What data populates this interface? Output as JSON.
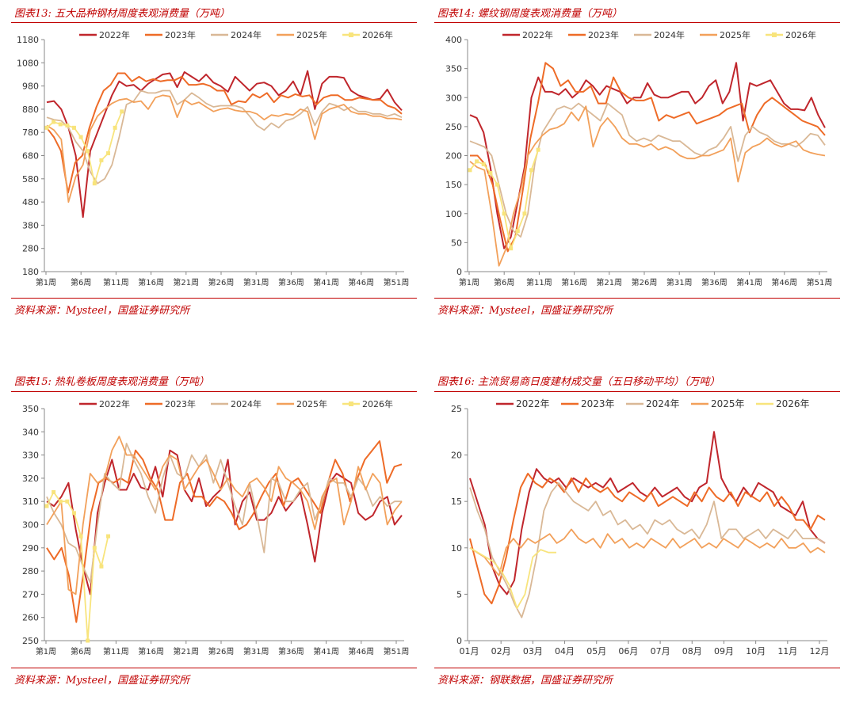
{
  "colors": {
    "title": "#c00000",
    "2022": "#c0262c",
    "2023": "#ee6b27",
    "2024": "#d9b896",
    "2025": "#f2a05a",
    "2026": "#f8e47c"
  },
  "panels": [
    {
      "title": "图表13: 五大品种钢材周度表观消费量（万吨）",
      "source": "资料来源：Mysteel，国盛证券研究所"
    },
    {
      "title": "图表14: 螺纹钢周度表观消费量（万吨）",
      "source": "资料来源：Mysteel，国盛证券研究所"
    },
    {
      "title": "图表15: 热轧卷板周度表观消费量（万吨）",
      "source": "资料来源：Mysteel，国盛证券研究所"
    },
    {
      "title": "图表16: 主流贸易商日度建材成交量（五日移动平均）（万吨）",
      "source": "资料来源：钢联数据，国盛证券研究所"
    }
  ],
  "chart_data": [
    {
      "type": "line",
      "title": "图表13: 五大品种钢材周度表观消费量（万吨）",
      "x_ticks": [
        "第1周",
        "第6周",
        "第11周",
        "第16周",
        "第21周",
        "第26周",
        "第31周",
        "第36周",
        "第41周",
        "第46周",
        "第51周"
      ],
      "ylim": [
        180,
        1180
      ],
      "y_ticks": [
        180,
        280,
        380,
        480,
        580,
        680,
        780,
        880,
        980,
        1080,
        1180
      ],
      "legend": "top",
      "series": [
        {
          "name": "2022年",
          "values": [
            910,
            915,
            880,
            800,
            680,
            415,
            700,
            780,
            860,
            940,
            1000,
            980,
            985,
            960,
            990,
            1010,
            1030,
            1035,
            975,
            1040,
            1020,
            1000,
            1030,
            995,
            980,
            955,
            1020,
            990,
            960,
            990,
            995,
            980,
            940,
            960,
            1000,
            940,
            1045,
            880,
            990,
            1020,
            1020,
            1015,
            960,
            940,
            930,
            920,
            925,
            965,
            910,
            875
          ]
        },
        {
          "name": "2023年",
          "values": [
            800,
            760,
            700,
            520,
            650,
            680,
            800,
            890,
            960,
            985,
            1035,
            1035,
            1000,
            1020,
            1000,
            1010,
            1000,
            1005,
            1005,
            1020,
            985,
            985,
            990,
            980,
            960,
            960,
            900,
            915,
            910,
            945,
            930,
            950,
            910,
            940,
            930,
            945,
            935,
            940,
            900,
            930,
            940,
            940,
            920,
            920,
            930,
            925,
            920,
            920,
            895,
            885,
            860
          ]
        },
        {
          "name": "2024年",
          "values": [
            845,
            835,
            830,
            800,
            740,
            700,
            610,
            560,
            580,
            640,
            760,
            900,
            915,
            960,
            950,
            950,
            960,
            960,
            900,
            920,
            950,
            930,
            905,
            890,
            895,
            895,
            895,
            885,
            850,
            810,
            790,
            820,
            800,
            830,
            840,
            860,
            890,
            810,
            870,
            905,
            895,
            875,
            890,
            870,
            870,
            860,
            860,
            850,
            860,
            845
          ]
        },
        {
          "name": "2025年",
          "values": [
            810,
            790,
            750,
            480,
            590,
            640,
            790,
            850,
            880,
            905,
            920,
            925,
            910,
            915,
            880,
            930,
            940,
            935,
            845,
            920,
            900,
            910,
            890,
            870,
            880,
            885,
            875,
            870,
            870,
            860,
            835,
            855,
            850,
            860,
            855,
            880,
            870,
            750,
            860,
            880,
            890,
            900,
            870,
            860,
            860,
            850,
            850,
            840,
            840,
            835
          ]
        },
        {
          "name": "2026年",
          "values": [
            800,
            825,
            815,
            810,
            800,
            760,
            700,
            560,
            660,
            690,
            800,
            870
          ]
        }
      ]
    },
    {
      "type": "line",
      "title": "图表14: 螺纹钢周度表观消费量（万吨）",
      "x_ticks": [
        "第1周",
        "第6周",
        "第11周",
        "第16周",
        "第21周",
        "第26周",
        "第31周",
        "第36周",
        "第41周",
        "第46周",
        "第51周"
      ],
      "ylim": [
        0,
        400
      ],
      "y_ticks": [
        0,
        50,
        100,
        150,
        200,
        250,
        300,
        350,
        400
      ],
      "legend": "top",
      "series": [
        {
          "name": "2022年",
          "values": [
            270,
            265,
            240,
            180,
            100,
            40,
            60,
            120,
            180,
            300,
            335,
            310,
            310,
            305,
            315,
            300,
            310,
            330,
            320,
            305,
            320,
            315,
            310,
            290,
            300,
            300,
            325,
            305,
            300,
            300,
            305,
            310,
            310,
            290,
            300,
            320,
            330,
            290,
            310,
            360,
            260,
            325,
            320,
            325,
            330,
            310,
            290,
            280,
            280,
            278,
            300,
            270,
            248
          ]
        },
        {
          "name": "2023年",
          "values": [
            200,
            200,
            185,
            150,
            90,
            35,
            60,
            140,
            230,
            290,
            360,
            350,
            320,
            330,
            310,
            310,
            320,
            290,
            290,
            335,
            310,
            300,
            295,
            295,
            300,
            260,
            270,
            265,
            270,
            275,
            255,
            260,
            265,
            270,
            280,
            285,
            290,
            240,
            270,
            290,
            300,
            290,
            280,
            270,
            260,
            255,
            250,
            235
          ]
        },
        {
          "name": "2024年",
          "values": [
            225,
            220,
            215,
            200,
            150,
            100,
            70,
            60,
            100,
            190,
            240,
            260,
            280,
            285,
            280,
            290,
            280,
            270,
            260,
            290,
            280,
            270,
            235,
            225,
            230,
            225,
            235,
            230,
            225,
            225,
            215,
            205,
            200,
            210,
            215,
            230,
            250,
            190,
            235,
            250,
            240,
            235,
            225,
            220,
            220,
            215,
            225,
            238,
            235,
            218
          ]
        },
        {
          "name": "2025年",
          "values": [
            190,
            180,
            175,
            100,
            10,
            40,
            100,
            140,
            200,
            220,
            235,
            245,
            248,
            255,
            275,
            260,
            285,
            215,
            250,
            265,
            250,
            230,
            220,
            220,
            215,
            220,
            210,
            215,
            210,
            200,
            195,
            195,
            200,
            200,
            205,
            210,
            230,
            155,
            205,
            215,
            220,
            230,
            220,
            215,
            220,
            225,
            210,
            205,
            202,
            200
          ]
        },
        {
          "name": "2026年",
          "values": [
            175,
            190,
            185,
            170,
            150,
            100,
            40,
            70,
            100,
            175,
            210
          ]
        }
      ]
    },
    {
      "type": "line",
      "title": "图表15: 热轧卷板周度表观消费量（万吨）",
      "x_ticks": [
        "第1周",
        "第6周",
        "第11周",
        "第16周",
        "第21周",
        "第26周",
        "第31周",
        "第36周",
        "第41周",
        "第46周",
        "第51周"
      ],
      "ylim": [
        250,
        350
      ],
      "y_ticks": [
        250,
        260,
        270,
        280,
        290,
        300,
        310,
        320,
        330,
        340,
        350
      ],
      "legend": "top",
      "series": [
        {
          "name": "2022年",
          "values": [
            310,
            308,
            312,
            318,
            298,
            282,
            270,
            305,
            318,
            328,
            315,
            315,
            322,
            316,
            315,
            325,
            312,
            332,
            330,
            315,
            310,
            320,
            308,
            312,
            315,
            328,
            300,
            310,
            314,
            302,
            302,
            305,
            312,
            306,
            310,
            314,
            300,
            284,
            305,
            318,
            322,
            320,
            318,
            305,
            302,
            304,
            310,
            312,
            300,
            304
          ]
        },
        {
          "name": "2023年",
          "values": [
            290,
            285,
            290,
            278,
            258,
            280,
            305,
            318,
            320,
            318,
            320,
            318,
            332,
            328,
            320,
            315,
            302,
            302,
            318,
            322,
            312,
            312,
            308,
            312,
            310,
            305,
            298,
            300,
            305,
            312,
            318,
            322,
            308,
            318,
            320,
            315,
            310,
            305,
            318,
            328,
            322,
            310,
            320,
            328,
            332,
            336,
            318,
            325,
            326
          ]
        },
        {
          "name": "2024年",
          "values": [
            312,
            305,
            300,
            292,
            290,
            282,
            275,
            300,
            322,
            318,
            315,
            335,
            328,
            322,
            312,
            305,
            320,
            330,
            322,
            320,
            330,
            325,
            330,
            318,
            328,
            318,
            308,
            300,
            318,
            304,
            288,
            320,
            318,
            310,
            310,
            315,
            318,
            302,
            310,
            320,
            318,
            318,
            312,
            320,
            316,
            308,
            312,
            308,
            310,
            310
          ]
        },
        {
          "name": "2025年",
          "values": [
            300,
            305,
            310,
            272,
            270,
            300,
            322,
            318,
            320,
            332,
            338,
            330,
            330,
            325,
            320,
            315,
            325,
            330,
            328,
            315,
            320,
            325,
            328,
            322,
            315,
            320,
            315,
            312,
            318,
            320,
            316,
            310,
            325,
            320,
            318,
            315,
            310,
            298,
            312,
            318,
            320,
            300,
            310,
            325,
            315,
            322,
            318,
            300,
            306,
            310
          ]
        },
        {
          "name": "2026年",
          "values": [
            308,
            314,
            310,
            310,
            305,
            295,
            250,
            290,
            282,
            295
          ]
        }
      ]
    },
    {
      "type": "line",
      "title": "图表16: 主流贸易商日度建材成交量（五日移动平均）（万吨）",
      "x_ticks": [
        "01月",
        "02月",
        "03月",
        "04月",
        "05月",
        "06月",
        "07月",
        "08月",
        "09月",
        "10月",
        "11月",
        "12月"
      ],
      "ylim": [
        0,
        25
      ],
      "y_ticks": [
        0,
        5,
        10,
        15,
        20,
        25
      ],
      "legend": "top",
      "series": [
        {
          "name": "2022年",
          "values": [
            17.5,
            15,
            12.5,
            8,
            6,
            5,
            6.5,
            12,
            16,
            18.5,
            17.5,
            17,
            17.5,
            16.5,
            17.5,
            17,
            16.5,
            17,
            16.5,
            17.5,
            16,
            16.5,
            17,
            16,
            15.5,
            16.5,
            15.5,
            16,
            16.5,
            15.5,
            15,
            16.5,
            17,
            22.5,
            17.5,
            16,
            15,
            16.5,
            15.5,
            17,
            16.5,
            16,
            14.5,
            14,
            13.5,
            15,
            12,
            11,
            10.5
          ]
        },
        {
          "name": "2023年",
          "values": [
            11,
            8,
            5,
            4,
            6,
            9,
            13,
            16.5,
            18,
            17,
            16.5,
            17.5,
            17,
            16,
            17.5,
            16,
            17.5,
            16.5,
            16,
            16.5,
            15.5,
            15,
            16,
            15.5,
            15,
            16,
            14.5,
            15,
            15.5,
            15,
            14.5,
            16,
            15,
            16.5,
            15.5,
            15,
            16,
            14.5,
            16,
            15.5,
            15,
            16,
            14.5,
            15.5,
            14.5,
            13,
            13,
            12,
            13.5,
            13
          ]
        },
        {
          "name": "2024年",
          "values": [
            16.5,
            14,
            12,
            9,
            7.5,
            6,
            4,
            2.5,
            5,
            9,
            14,
            16,
            17,
            16,
            15,
            14.5,
            14,
            15,
            13.5,
            14,
            12.5,
            13,
            12,
            12.5,
            11.5,
            13,
            12.5,
            13,
            12,
            11.5,
            12,
            11,
            12.5,
            15,
            11,
            12,
            12,
            11,
            11.5,
            12,
            11,
            12,
            11.5,
            11,
            12,
            11,
            11,
            11,
            10.5
          ]
        },
        {
          "name": "2025年",
          "values": [
            10,
            9.5,
            9,
            8,
            7,
            10,
            11,
            10,
            11,
            10.5,
            11,
            11.5,
            10.5,
            11,
            12,
            11,
            10.5,
            11,
            10,
            11.5,
            10.5,
            11,
            10,
            10.5,
            10,
            11,
            10.5,
            10,
            11,
            10,
            10.5,
            11,
            10,
            10.5,
            10,
            11,
            10.5,
            10,
            11,
            10.5,
            10,
            10.5,
            10,
            11,
            10,
            10,
            10.5,
            9.5,
            10,
            9.5
          ]
        },
        {
          "name": "2026年",
          "values": [
            10,
            9.5,
            9,
            8.5,
            7.5,
            6,
            3.5,
            5,
            9,
            9.8,
            9.5,
            9.5
          ]
        }
      ]
    }
  ]
}
